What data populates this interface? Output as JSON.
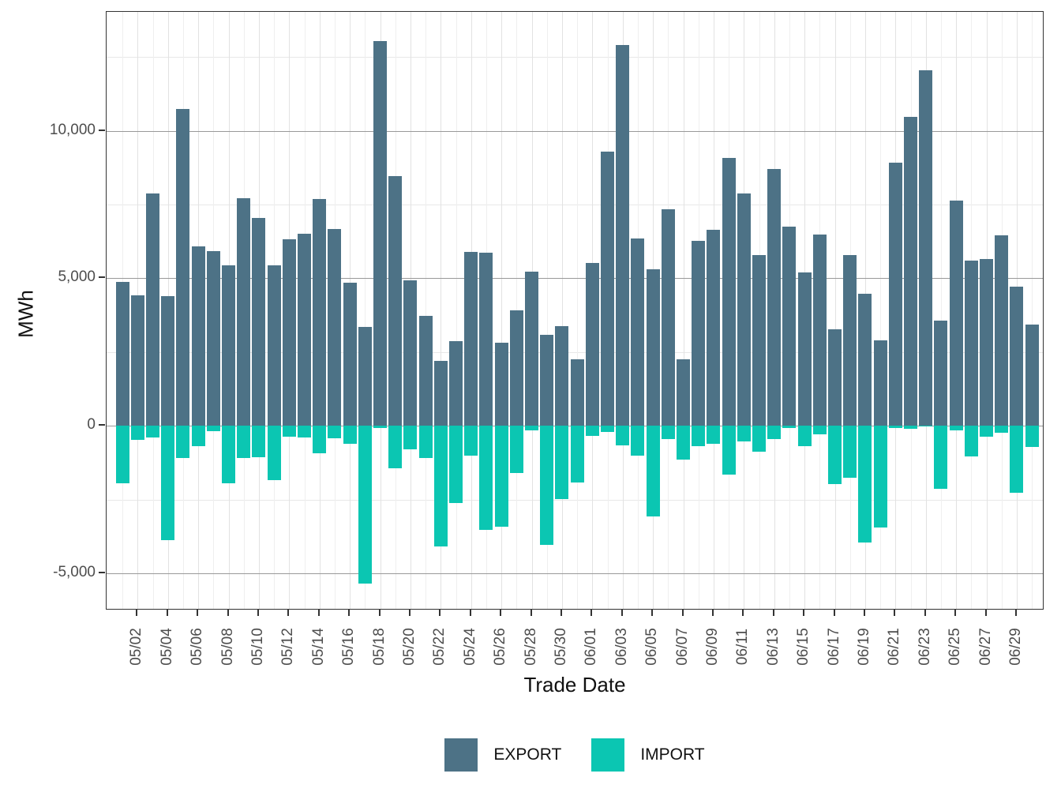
{
  "chart_data": {
    "type": "bar",
    "title": "",
    "xlabel": "Trade Date",
    "ylabel": "MWh",
    "legend_position": "bottom",
    "grid": true,
    "ylim": [
      -6250,
      14050
    ],
    "y_major_ticks": [
      10000,
      5000,
      0,
      -5000
    ],
    "y_major_tick_labels": [
      "10,000",
      "5,000",
      "0",
      "-5,000"
    ],
    "y_minor_ticks": [
      12500,
      7500,
      2500,
      -2500
    ],
    "x_ticks_every_2_days_labels": [
      "05/02",
      "05/04",
      "05/06",
      "05/08",
      "05/10",
      "05/12",
      "05/14",
      "05/16",
      "05/18",
      "05/20",
      "05/22",
      "05/24",
      "05/26",
      "05/28",
      "05/30",
      "06/01",
      "06/03",
      "06/05",
      "06/07",
      "06/09",
      "06/11",
      "06/13",
      "06/15",
      "06/17",
      "06/19",
      "06/21",
      "06/23",
      "06/25",
      "06/27",
      "06/29"
    ],
    "categories": [
      "05/01",
      "05/02",
      "05/03",
      "05/04",
      "05/05",
      "05/06",
      "05/07",
      "05/08",
      "05/09",
      "05/10",
      "05/11",
      "05/12",
      "05/13",
      "05/14",
      "05/15",
      "05/16",
      "05/17",
      "05/18",
      "05/19",
      "05/20",
      "05/21",
      "05/22",
      "05/23",
      "05/24",
      "05/25",
      "05/26",
      "05/27",
      "05/28",
      "05/29",
      "05/30",
      "05/31",
      "06/01",
      "06/02",
      "06/03",
      "06/04",
      "06/05",
      "06/06",
      "06/07",
      "06/08",
      "06/09",
      "06/10",
      "06/11",
      "06/12",
      "06/13",
      "06/14",
      "06/15",
      "06/16",
      "06/17",
      "06/18",
      "06/19",
      "06/20",
      "06/21",
      "06/22",
      "06/23",
      "06/24",
      "06/25",
      "06/26",
      "06/27",
      "06/28",
      "06/29",
      "06/30"
    ],
    "series": [
      {
        "name": "EXPORT",
        "color": "#4D7286",
        "values": [
          4890,
          4410,
          7870,
          4390,
          10730,
          6090,
          5930,
          5430,
          7710,
          7040,
          5450,
          6330,
          6520,
          7690,
          6670,
          4850,
          3340,
          13040,
          8460,
          4920,
          3740,
          2200,
          2870,
          5890,
          5860,
          2820,
          3920,
          5220,
          3090,
          3380,
          2250,
          5530,
          9290,
          12910,
          6360,
          5310,
          7340,
          2250,
          6270,
          6640,
          9070,
          7870,
          5800,
          8710,
          6760,
          5210,
          6490,
          3270,
          5780,
          4480,
          2900,
          8920,
          10460,
          12040,
          3560,
          7640,
          5600,
          5650,
          6450,
          4720,
          3430
        ]
      },
      {
        "name": "IMPORT",
        "color": "#0BC6B2",
        "values": [
          -1950,
          -490,
          -400,
          -3880,
          -1090,
          -690,
          -190,
          -1950,
          -1100,
          -1080,
          -1850,
          -370,
          -400,
          -940,
          -430,
          -620,
          -5340,
          -80,
          -1430,
          -800,
          -1090,
          -4100,
          -2630,
          -1000,
          -3530,
          -3420,
          -1590,
          -150,
          -4040,
          -2480,
          -1920,
          -340,
          -200,
          -670,
          -1010,
          -3080,
          -460,
          -1160,
          -690,
          -620,
          -1650,
          -540,
          -880,
          -460,
          -70,
          -700,
          -290,
          -1990,
          -1770,
          -3950,
          -3440,
          -70,
          -90,
          -30,
          -2140,
          -160,
          -1040,
          -380,
          -240,
          -2280,
          -720
        ]
      }
    ]
  },
  "axes": {
    "x_title": "Trade Date",
    "y_title": "MWh"
  },
  "legend": {
    "items": [
      {
        "label": "EXPORT",
        "color": "#4D7286"
      },
      {
        "label": "IMPORT",
        "color": "#0BC6B2"
      }
    ]
  }
}
